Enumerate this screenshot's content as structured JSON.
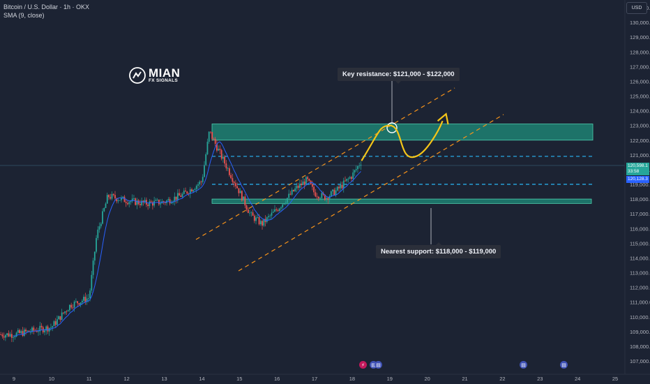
{
  "header": {
    "title": "Bitcoin / U.S. Dollar · 1h · OKX",
    "indicator": "SMA (9, close)"
  },
  "currency_button": "USD",
  "logo": {
    "name": "MIAN",
    "sub": "FX SIGNALS"
  },
  "annotations": {
    "resistance": "Key resistance: $121,000 - $122,000",
    "support": "Nearest support: $118,000 - $119,000"
  },
  "price_badges": {
    "last_price": "120,598.1",
    "countdown": "33:58",
    "sma_value": "120,128.3"
  },
  "colors": {
    "background": "#1c2333",
    "up": "#26a69a",
    "down": "#ef5350",
    "zone": "#1e8f7c",
    "sma": "#2962ff",
    "channel": "#f7931a",
    "level": "#29b6f6",
    "projection": "#f5c518"
  },
  "chart_data": {
    "type": "candlestick",
    "y_axis": {
      "range": [
        106500,
        131500
      ],
      "ticks": [
        "131,000.0",
        "130,000.0",
        "129,000.0",
        "128,000.0",
        "127,000.0",
        "126,000.0",
        "125,000.0",
        "124,000.0",
        "123,000.0",
        "122,000.0",
        "121,000.0",
        "120,000.0",
        "119,000.0",
        "118,000.0",
        "117,000.0",
        "116,000.0",
        "115,000.0",
        "114,000.0",
        "113,000.0",
        "112,000.0",
        "111,000.0",
        "110,000.0",
        "109,000.0",
        "108,000.0",
        "107,000.0"
      ]
    },
    "x_axis": {
      "ticks": [
        "9",
        "10",
        "11",
        "12",
        "13",
        "14",
        "15",
        "16",
        "17",
        "18",
        "19",
        "20",
        "21",
        "22",
        "23",
        "24",
        "25"
      ]
    },
    "daily_path": [
      {
        "day": 9,
        "price": 108800
      },
      {
        "day": 10,
        "price": 109300
      },
      {
        "day": 10.5,
        "price": 110800
      },
      {
        "day": 11,
        "price": 111300
      },
      {
        "day": 11.2,
        "price": 115500
      },
      {
        "day": 11.5,
        "price": 118200
      },
      {
        "day": 12,
        "price": 117900
      },
      {
        "day": 12.5,
        "price": 117700
      },
      {
        "day": 13,
        "price": 117800
      },
      {
        "day": 13.5,
        "price": 118300
      },
      {
        "day": 14,
        "price": 119200
      },
      {
        "day": 14.2,
        "price": 122600
      },
      {
        "day": 14.5,
        "price": 121000
      },
      {
        "day": 15,
        "price": 118500
      },
      {
        "day": 15.3,
        "price": 116900
      },
      {
        "day": 15.6,
        "price": 116300
      },
      {
        "day": 16,
        "price": 117300
      },
      {
        "day": 16.5,
        "price": 118700
      },
      {
        "day": 16.8,
        "price": 119300
      },
      {
        "day": 17,
        "price": 118400
      },
      {
        "day": 17.3,
        "price": 118100
      },
      {
        "day": 17.6,
        "price": 118600
      },
      {
        "day": 18,
        "price": 119600
      },
      {
        "day": 18.25,
        "price": 120600
      }
    ],
    "resistance_zone": [
      122000,
      123100
    ],
    "support_zone": [
      117700,
      118000
    ],
    "levels": [
      120900,
      119000
    ],
    "projection": [
      {
        "day": 18.25,
        "price": 120600
      },
      {
        "day": 19,
        "price": 123000
      },
      {
        "day": 19.7,
        "price": 120900
      },
      {
        "day": 20.5,
        "price": 123400
      }
    ]
  }
}
